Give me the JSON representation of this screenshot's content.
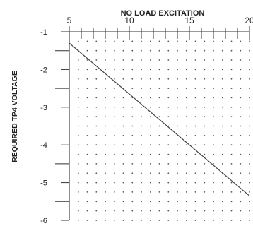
{
  "chart_data": {
    "type": "line",
    "title": "NO LOAD EXCITATION",
    "xlabel": "NO LOAD EXCITATION",
    "ylabel": "REQUIRED TP4 VOLTAGE",
    "xlim": [
      5,
      20
    ],
    "ylim": [
      -6,
      -1
    ],
    "x_ticks": [
      "5",
      "10",
      "15",
      "20"
    ],
    "y_ticks": [
      "-1",
      "-2",
      "-3",
      "-4",
      "-5",
      "-6"
    ],
    "x_axis_position": "top",
    "grid": "dotted",
    "series": [
      {
        "x": [
          5,
          20
        ],
        "y": [
          -1.3,
          -5.35
        ]
      }
    ]
  }
}
